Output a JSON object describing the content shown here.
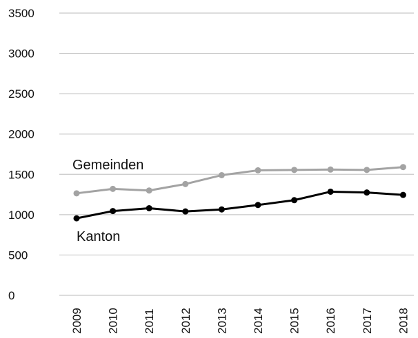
{
  "chart_data": {
    "type": "line",
    "categories": [
      "2009",
      "2010",
      "2011",
      "2012",
      "2013",
      "2014",
      "2015",
      "2016",
      "2017",
      "2018"
    ],
    "ylim": [
      0,
      3500
    ],
    "yticks": [
      "0",
      "500",
      "1000",
      "1500",
      "2000",
      "2500",
      "3000",
      "3500"
    ],
    "grid": true,
    "series": [
      {
        "name": "Gemeinden",
        "color": "#a3a3a3",
        "values": [
          1265,
          1320,
          1300,
          1380,
          1490,
          1550,
          1555,
          1560,
          1555,
          1590
        ]
      },
      {
        "name": "Kanton",
        "color": "#000000",
        "values": [
          955,
          1045,
          1080,
          1040,
          1065,
          1120,
          1180,
          1285,
          1275,
          1245
        ]
      }
    ]
  }
}
